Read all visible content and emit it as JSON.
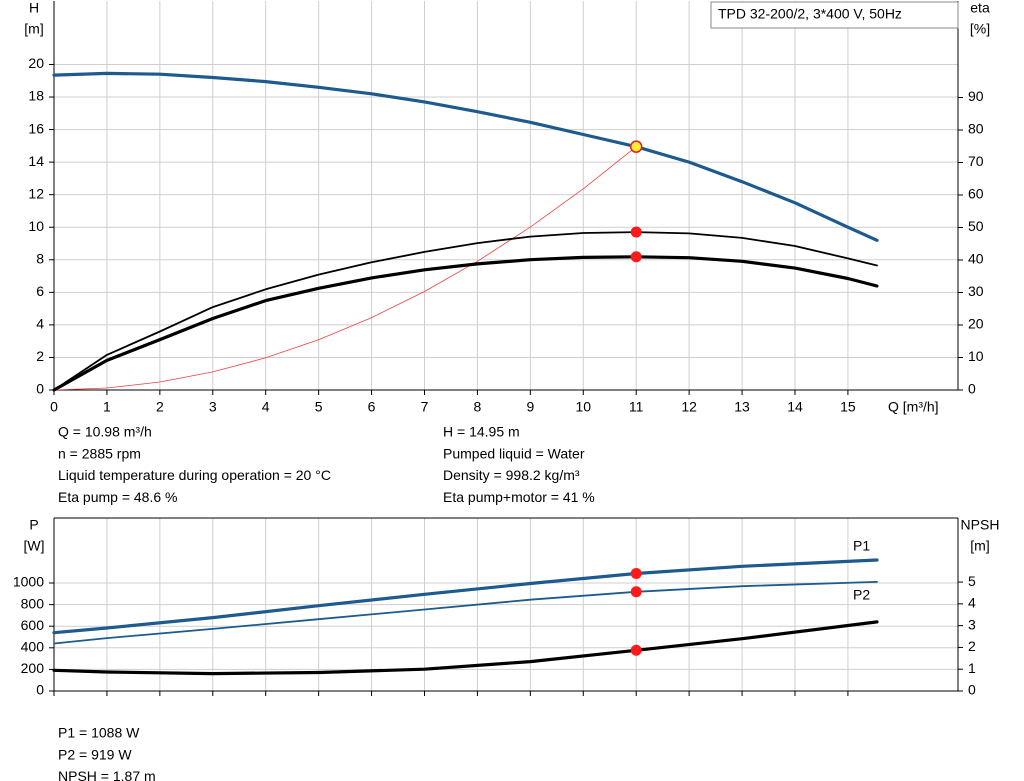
{
  "chart_data": [
    {
      "type": "line",
      "legend": "TPD 32-200/2, 3*400 V, 50Hz",
      "ylabel": "H",
      "yunit": "[m]",
      "y2label": "eta",
      "y2unit": "[%]",
      "xlabel": "Q [m³/h]",
      "xlim": [
        0,
        17.08
      ],
      "xticks": [
        0,
        1,
        2,
        3,
        4,
        5,
        6,
        7,
        8,
        9,
        10,
        11,
        12,
        13,
        14,
        15
      ],
      "ylim": [
        0,
        23.9
      ],
      "yticks": [
        0,
        2,
        4,
        6,
        8,
        10,
        12,
        14,
        16,
        18,
        20
      ],
      "y2lim": [
        0,
        119.7
      ],
      "y2ticks": [
        0,
        10,
        20,
        30,
        40,
        50,
        60,
        70,
        80,
        90
      ],
      "grid": true,
      "duty_x": 11,
      "series": [
        {
          "color": "#f04040",
          "style": "thin",
          "x": [
            0,
            1,
            2,
            3,
            4,
            5,
            6,
            7,
            8,
            9,
            10,
            11
          ],
          "values": [
            0,
            0.12,
            0.49,
            1.11,
            1.98,
            3.09,
            4.45,
            6.05,
            7.91,
            10.01,
            12.36,
            14.95
          ]
        },
        {
          "color": "#000000",
          "style": "normal",
          "axis": "y2",
          "marker_color": "#ff1a1a",
          "x": [
            0,
            1,
            2,
            3,
            4,
            5,
            6,
            7,
            8,
            9,
            10,
            11,
            12,
            13,
            14,
            15,
            15.55
          ],
          "values": [
            0,
            10.8,
            18,
            25.5,
            31,
            35.5,
            39.3,
            42.5,
            45.2,
            47.2,
            48.3,
            48.6,
            48.2,
            46.8,
            44.3,
            40.5,
            38.3
          ]
        },
        {
          "color": "#000000",
          "style": "thick",
          "axis": "y2",
          "marker_color": "#ff1a1a",
          "x": [
            0,
            1,
            2,
            3,
            4,
            5,
            6,
            7,
            8,
            9,
            10,
            11,
            12,
            13,
            14,
            15,
            15.55
          ],
          "values": [
            0,
            9.1,
            15.5,
            22,
            27.5,
            31.3,
            34.5,
            37,
            38.8,
            40.1,
            40.8,
            41,
            40.7,
            39.6,
            37.5,
            34.3,
            32
          ]
        },
        {
          "color": "#1d5a8e",
          "style": "thick",
          "marker_color": "#ffee33",
          "x": [
            0,
            1,
            2,
            3,
            4,
            5,
            6,
            7,
            8,
            9,
            10,
            11,
            12,
            13,
            14,
            15,
            15.55
          ],
          "values": [
            19.35,
            19.45,
            19.4,
            19.2,
            18.95,
            18.6,
            18.2,
            17.7,
            17.1,
            16.45,
            15.7,
            14.95,
            14.0,
            12.8,
            11.5,
            10.0,
            9.2
          ]
        }
      ],
      "notes_left": [
        "Q = 10.98 m³/h",
        "n = 2885 rpm",
        "Liquid temperature during operation = 20 °C",
        "Eta pump = 48.6 %"
      ],
      "notes_right": [
        "H = 14.95 m",
        "Pumped liquid = Water",
        "Density = 998.2 kg/m³",
        "Eta pump+motor = 41 %"
      ]
    },
    {
      "type": "line",
      "ylabel": "P",
      "yunit": "[W]",
      "y2label": "NPSH",
      "y2unit": "[m]",
      "xlim": [
        0,
        17.08
      ],
      "xticks": [
        0,
        1,
        2,
        3,
        4,
        5,
        6,
        7,
        8,
        9,
        10,
        11,
        12,
        13,
        14,
        15
      ],
      "xtick_labels": false,
      "ylim": [
        0,
        1602
      ],
      "yticks": [
        0,
        200,
        400,
        600,
        800,
        1000
      ],
      "y2lim": [
        0,
        7.94
      ],
      "y2ticks": [
        0,
        1,
        2,
        3,
        4,
        5
      ],
      "grid": true,
      "duty_x": 11,
      "series": [
        {
          "name": "P1",
          "label_side": "above",
          "color": "#1d5a8e",
          "style": "thick",
          "marker_color": "#ff1a1a",
          "x": [
            0,
            1,
            3,
            5,
            7,
            9,
            11,
            13,
            15.55
          ],
          "values": [
            540,
            583,
            680,
            790,
            895,
            995,
            1088,
            1155,
            1213
          ]
        },
        {
          "name": "P2",
          "label_side": "below",
          "color": "#1d5a8e",
          "style": "normal",
          "marker_color": "#ff1a1a",
          "x": [
            0,
            1,
            3,
            5,
            7,
            9,
            11,
            13,
            15.55
          ],
          "values": [
            440,
            490,
            575,
            665,
            755,
            845,
            919,
            970,
            1010
          ]
        },
        {
          "color": "#000000",
          "style": "thick",
          "axis": "y2",
          "marker_color": "#ff1a1a",
          "x": [
            0,
            1,
            3,
            5,
            7,
            9,
            11,
            13,
            15.55
          ],
          "values": [
            0.95,
            0.87,
            0.8,
            0.85,
            1.0,
            1.35,
            1.87,
            2.4,
            3.17
          ]
        }
      ],
      "notes_left": [
        "P1 = 1088 W",
        "P2 = 919 W",
        "NPSH = 1.87 m"
      ]
    }
  ]
}
